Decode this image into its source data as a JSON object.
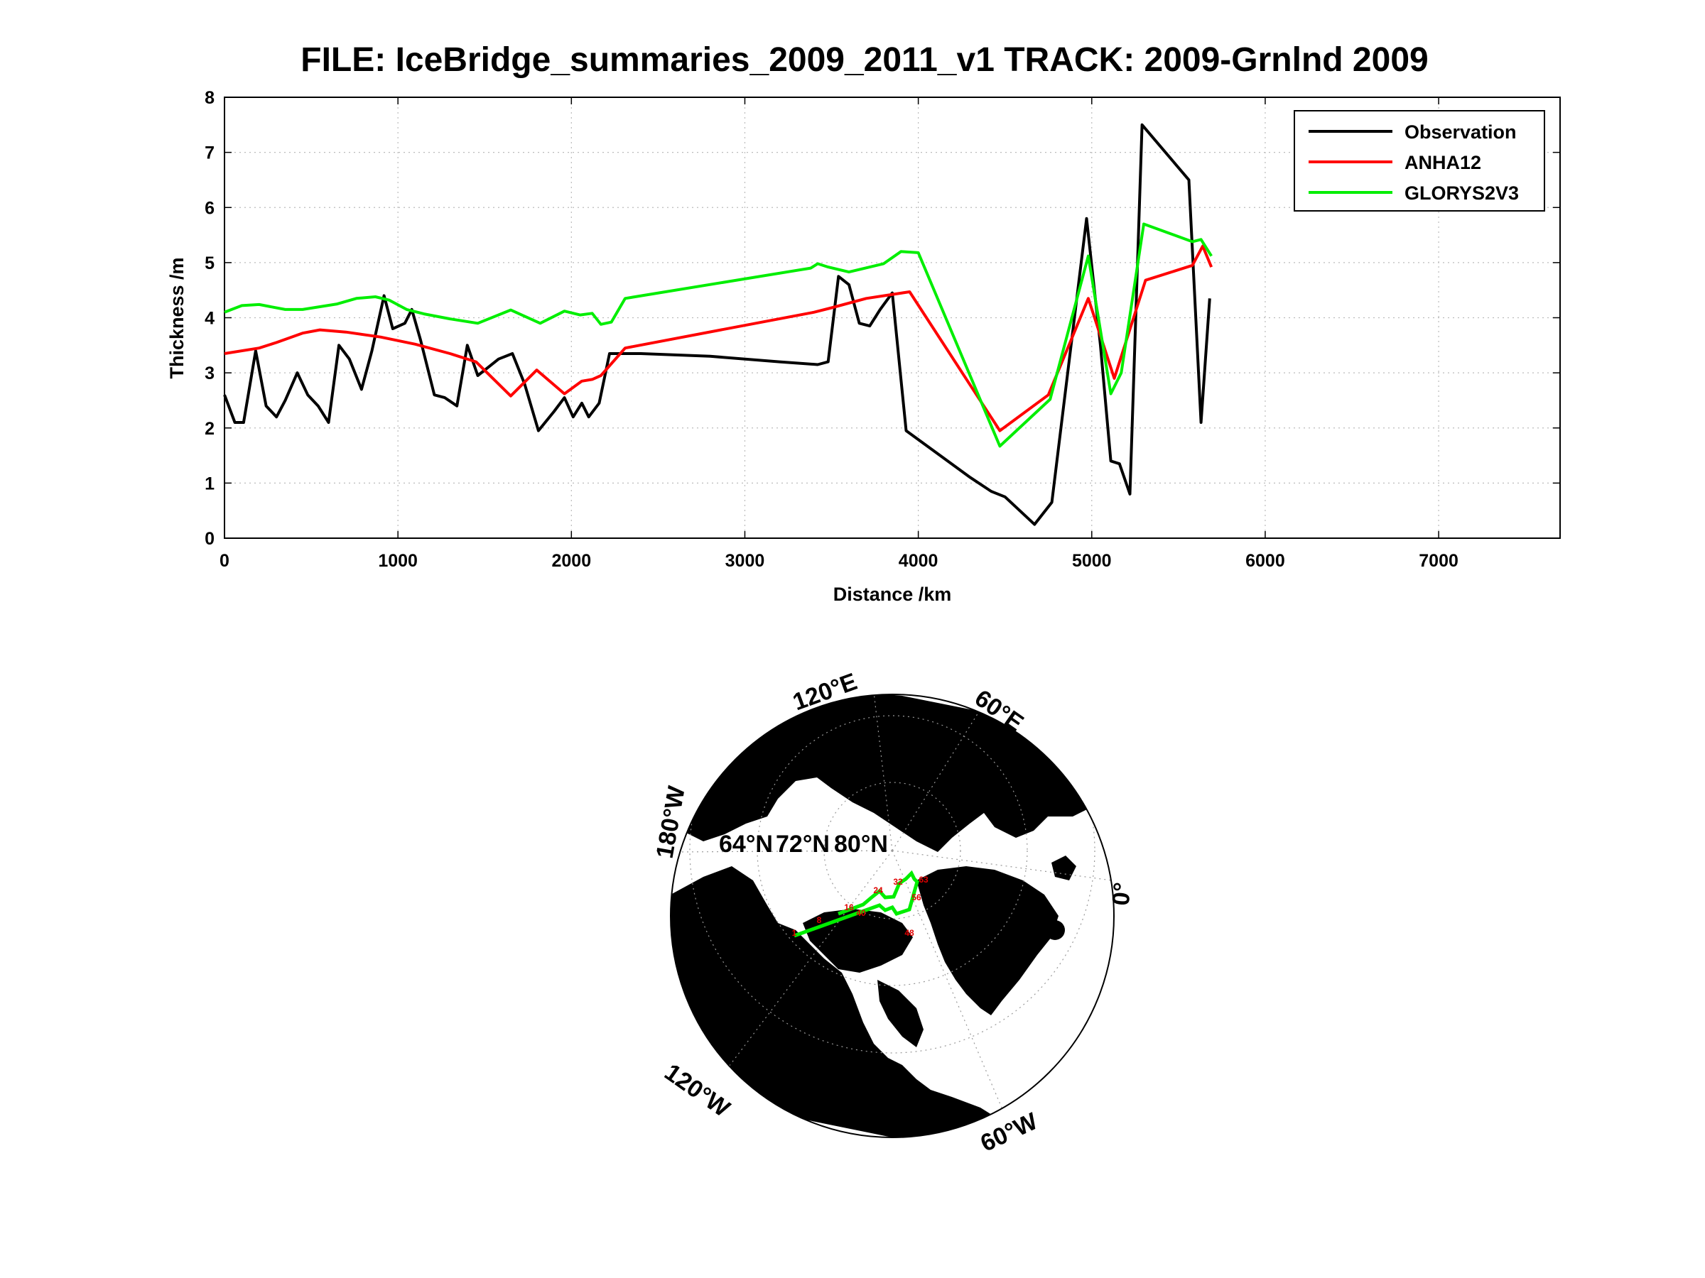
{
  "figure": {
    "title": "FILE: IceBridge_summaries_2009_2011_v1 TRACK: 2009-Grnlnd 2009"
  },
  "chart_data": [
    {
      "type": "line",
      "xlabel": "Distance /km",
      "ylabel": "Thickness /m",
      "xlim": [
        0,
        7700
      ],
      "ylim": [
        0,
        8
      ],
      "xticks": [
        0,
        1000,
        2000,
        3000,
        4000,
        5000,
        6000,
        7000
      ],
      "yticks": [
        0,
        1,
        2,
        3,
        4,
        5,
        6,
        7,
        8
      ],
      "grid": true,
      "legend_position": "top-right",
      "series": [
        {
          "name": "Observation",
          "color": "#000000",
          "x": [
            0,
            60,
            110,
            180,
            240,
            300,
            350,
            420,
            480,
            540,
            600,
            660,
            720,
            790,
            850,
            920,
            970,
            1040,
            1080,
            1130,
            1210,
            1270,
            1340,
            1400,
            1460,
            1520,
            1580,
            1660,
            1730,
            1810,
            1900,
            1960,
            2010,
            2060,
            2100,
            2160,
            2220,
            2400,
            2800,
            3200,
            3420,
            3480,
            3540,
            3600,
            3660,
            3720,
            3780,
            3850,
            3930,
            4300,
            4420,
            4500,
            4670,
            4770,
            4970,
            5050,
            5110,
            5160,
            5220,
            5290,
            5560,
            5630,
            5680
          ],
          "y": [
            2.6,
            2.1,
            2.1,
            3.4,
            2.4,
            2.2,
            2.5,
            3.0,
            2.6,
            2.4,
            2.1,
            3.5,
            3.25,
            2.7,
            3.4,
            4.4,
            3.8,
            3.9,
            4.15,
            3.6,
            2.6,
            2.55,
            2.4,
            3.5,
            2.95,
            3.1,
            3.25,
            3.35,
            2.8,
            1.95,
            2.3,
            2.55,
            2.2,
            2.45,
            2.2,
            2.45,
            3.35,
            3.35,
            3.3,
            3.2,
            3.15,
            3.2,
            4.75,
            4.6,
            3.9,
            3.85,
            4.15,
            4.45,
            1.95,
            1.1,
            0.85,
            0.75,
            0.25,
            0.65,
            5.8,
            3.5,
            1.4,
            1.35,
            0.8,
            7.5,
            6.5,
            2.1,
            4.35
          ]
        },
        {
          "name": "ANHA12",
          "color": "#ff0000",
          "x": [
            0,
            200,
            300,
            450,
            550,
            700,
            900,
            1100,
            1300,
            1450,
            1650,
            1800,
            1960,
            2060,
            2120,
            2170,
            2310,
            3400,
            3500,
            3700,
            3950,
            4470,
            4750,
            4980,
            5130,
            5310,
            5580,
            5640,
            5690
          ],
          "y": [
            3.35,
            3.45,
            3.55,
            3.72,
            3.78,
            3.74,
            3.65,
            3.52,
            3.35,
            3.2,
            2.58,
            3.05,
            2.62,
            2.85,
            2.88,
            2.95,
            3.45,
            4.1,
            4.18,
            4.35,
            4.47,
            1.95,
            2.6,
            4.35,
            2.9,
            4.68,
            4.95,
            5.3,
            4.92
          ]
        },
        {
          "name": "GLORYS2V3",
          "color": "#00ee00",
          "x": [
            0,
            100,
            200,
            350,
            450,
            650,
            760,
            870,
            950,
            1050,
            1150,
            1300,
            1460,
            1650,
            1820,
            1960,
            2050,
            2120,
            2170,
            2230,
            2310,
            3380,
            3420,
            3480,
            3600,
            3800,
            3900,
            4000,
            4470,
            4760,
            4980,
            5110,
            5170,
            5300,
            5580,
            5630,
            5690
          ],
          "y": [
            4.1,
            4.22,
            4.24,
            4.15,
            4.15,
            4.25,
            4.35,
            4.38,
            4.32,
            4.15,
            4.07,
            3.98,
            3.9,
            4.14,
            3.9,
            4.12,
            4.05,
            4.08,
            3.88,
            3.92,
            4.35,
            4.9,
            4.98,
            4.92,
            4.83,
            4.98,
            5.2,
            5.18,
            1.67,
            2.52,
            5.12,
            2.62,
            3.0,
            5.7,
            5.38,
            5.42,
            5.12
          ]
        }
      ]
    },
    {
      "type": "map",
      "projection": "north-polar stereographic",
      "longitude_labels": [
        "120°E",
        "60°E",
        "0°",
        "60°W",
        "120°W",
        "180°W"
      ],
      "latitude_labels": [
        "64°N",
        "72°N",
        "80°N"
      ],
      "track_color": "#00ee00",
      "track_label_color": "#e00000",
      "track_labels": [
        "1",
        "8",
        "16",
        "24",
        "32",
        "40",
        "48",
        "56",
        "63"
      ]
    }
  ]
}
